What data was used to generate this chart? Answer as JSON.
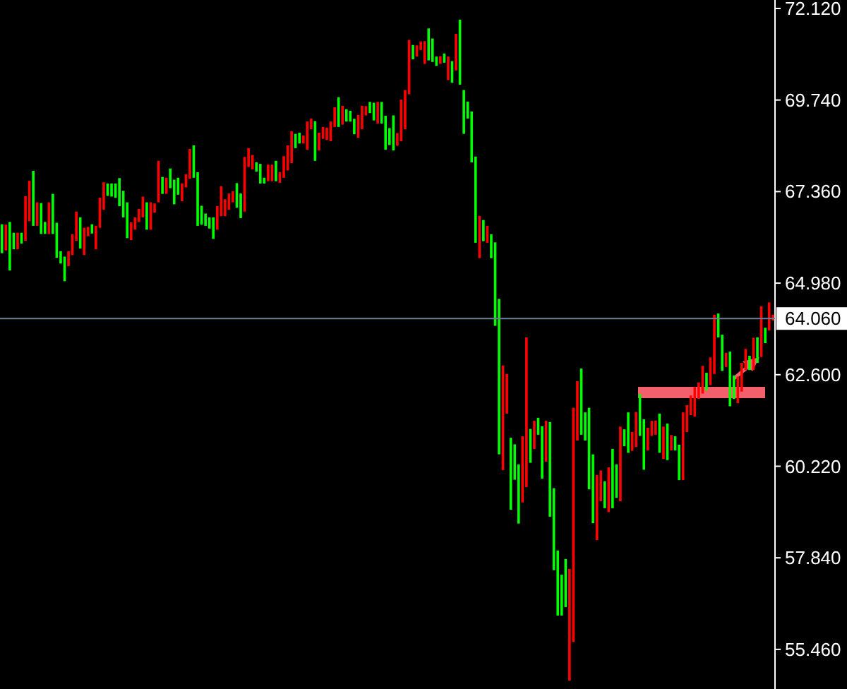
{
  "chart_data": {
    "type": "bar",
    "tick_labels": "y",
    "categories": [
      null,
      null,
      null,
      null,
      null,
      null,
      null,
      null,
      null,
      null,
      null,
      null,
      null,
      null,
      null,
      null,
      null,
      null,
      null,
      null,
      null,
      null,
      null,
      null,
      null,
      null,
      null,
      null,
      null,
      null,
      null,
      null,
      null,
      null,
      null,
      null,
      null,
      null,
      null,
      null,
      null,
      null,
      null,
      null,
      null,
      null,
      null,
      null,
      null,
      null,
      null,
      null,
      null,
      null,
      null,
      null,
      null,
      null,
      null,
      null,
      null,
      null,
      null,
      null,
      null,
      null,
      null,
      null,
      null,
      null,
      null,
      null,
      null,
      null,
      null,
      null,
      null,
      null,
      null,
      null,
      null,
      null,
      null,
      null,
      null,
      null,
      null,
      null,
      null,
      null,
      null,
      null,
      null,
      null,
      null,
      null,
      null,
      null,
      null,
      null,
      null,
      null,
      null,
      null,
      null,
      null,
      null,
      null,
      null,
      null,
      null,
      null,
      null,
      null,
      null,
      null,
      null,
      null,
      null,
      null,
      null,
      null,
      null,
      null,
      null,
      null,
      null,
      null,
      null,
      null,
      null,
      null,
      null,
      null,
      null,
      null,
      null,
      null,
      null,
      null,
      null,
      null,
      null,
      null,
      null,
      null,
      null,
      null,
      null,
      null,
      null,
      null,
      null,
      null,
      null,
      null,
      null,
      null,
      null,
      null,
      null,
      null,
      null,
      null,
      null,
      null,
      null,
      null,
      null,
      null,
      null,
      null,
      null,
      null,
      null,
      null,
      null,
      null,
      null,
      null,
      null,
      null,
      null,
      null,
      null,
      null,
      null,
      null,
      null,
      null,
      null,
      null,
      null,
      null,
      null,
      null,
      null,
      null
    ],
    "base": [
      65.76,
      65.83,
      65.31,
      65.86,
      65.86,
      66.01,
      66.08,
      66.59,
      66.47,
      66.47,
      66.26,
      66.26,
      66.26,
      66.26,
      65.64,
      65.49,
      65.03,
      65.42,
      65.71,
      66.08,
      65.88,
      65.71,
      66.2,
      66.27,
      65.86,
      66.42,
      66.89,
      67.25,
      67.23,
      67.2,
      66.98,
      66.69,
      66.15,
      66.1,
      66.37,
      66.57,
      66.69,
      66.37,
      66.37,
      66.81,
      67.08,
      67.3,
      67.3,
      67.45,
      67.03,
      67.28,
      67.11,
      67.47,
      67.69,
      67.72,
      66.47,
      66.5,
      66.47,
      66.4,
      66.13,
      66.37,
      66.72,
      66.72,
      66.89,
      67.08,
      66.94,
      66.67,
      66.84,
      68.0,
      67.94,
      67.88,
      67.57,
      67.57,
      67.63,
      67.63,
      67.63,
      67.59,
      67.72,
      67.91,
      68.1,
      68.49,
      68.61,
      68.61,
      68.45,
      68.98,
      68.16,
      68.43,
      68.73,
      68.7,
      68.67,
      69.04,
      69.04,
      69.1,
      69.18,
      69.18,
      68.85,
      68.76,
      68.98,
      69.34,
      69.4,
      69.21,
      69.13,
      69.13,
      68.45,
      68.57,
      68.43,
      68.55,
      68.67,
      68.98,
      69.89,
      70.8,
      70.87,
      71.04,
      70.68,
      70.77,
      70.73,
      70.63,
      70.68,
      70.71,
      70.26,
      70.19,
      70.51,
      70.14,
      68.86,
      69.26,
      68.12,
      66.03,
      65.63,
      66.07,
      66.03,
      65.63,
      63.87,
      60.53,
      60.12,
      61.59,
      59.09,
      59.87,
      58.73,
      59.28,
      59.68,
      60.31,
      60.67,
      61.04,
      59.9,
      60.34,
      58.91,
      57.52,
      56.34,
      56.34,
      56.56,
      54.65,
      55.65,
      60.89,
      61.04,
      60.89,
      59.62,
      58.74,
      58.3,
      59.31,
      59.13,
      59.03,
      59.13,
      59.4,
      59.31,
      60.74,
      60.57,
      60.62,
      60.72,
      61.01,
      60.13,
      60.63,
      61.01,
      61.04,
      60.57,
      60.41,
      60.38,
      60.63,
      60.63,
      59.86,
      59.86,
      61.11,
      61.55,
      61.51,
      61.97,
      62.11,
      62.19,
      62.33,
      62.62,
      63.57,
      62.7,
      62.8,
      61.78,
      61.97,
      61.86,
      62.16,
      62.72,
      62.72,
      62.72,
      62.91,
      63.06,
      63.42,
      63.75,
      64.01
    ],
    "values": [
      0.75,
      0.67,
      1.26,
      0.43,
      0.43,
      0.28,
      1.16,
      1.05,
      1.43,
      0.61,
      0.8,
      0.31,
      0.82,
      1.04,
      0.91,
      0.32,
      0.64,
      0.39,
      0.54,
      0.76,
      0.81,
      0.71,
      0.24,
      0.24,
      0.61,
      0.78,
      0.71,
      0.32,
      0.34,
      0.37,
      0.73,
      0.69,
      0.93,
      0.46,
      0.32,
      0.34,
      0.54,
      0.71,
      0.71,
      0.24,
      1.08,
      0.44,
      0.42,
      0.51,
      0.64,
      0.44,
      0.46,
      0.34,
      0.78,
      0.84,
      1.39,
      0.49,
      0.32,
      0.29,
      0.56,
      0.61,
      0.78,
      0.44,
      0.42,
      0.29,
      0.64,
      0.64,
      1.42,
      0.49,
      0.37,
      0.24,
      0.51,
      0.15,
      0.43,
      0.43,
      0.53,
      0.27,
      0.56,
      0.65,
      0.83,
      0.37,
      0.28,
      0.21,
      0.73,
      0.28,
      1.03,
      0.46,
      0.31,
      0.32,
      0.51,
      0.51,
      0.77,
      0.49,
      0.32,
      0.28,
      0.4,
      0.59,
      0.61,
      0.24,
      0.29,
      0.46,
      0.56,
      0.56,
      0.88,
      0.44,
      0.91,
      0.33,
      1.08,
      1.02,
      1.41,
      0.37,
      0.29,
      0.22,
      0.59,
      0.83,
      0.61,
      0.24,
      0.2,
      0.24,
      0.61,
      0.56,
      0.95,
      1.69,
      1.14,
      0.44,
      1.32,
      2.24,
      1.1,
      0.55,
      0.44,
      0.62,
      2.17,
      4.04,
      2.72,
      1.03,
      1.87,
      0.92,
      1.54,
      1.72,
      3.89,
      0.88,
      0.73,
      0.44,
      1.36,
      1.06,
      2.46,
      2.13,
      1.69,
      1.06,
      1.25,
      2.9,
      6.09,
      1.54,
      1.72,
      0.73,
      2.12,
      1.79,
      1.69,
      0.8,
      0.7,
      1.16,
      1.54,
      0.87,
      1.94,
      0.44,
      1.05,
      0.49,
      0.91,
      1.09,
      1.31,
      0.59,
      0.39,
      0.37,
      1.02,
      0.84,
      0.95,
      0.4,
      0.37,
      0.92,
      1.76,
      0.7,
      0.51,
      0.77,
      0.43,
      0.72,
      0.46,
      0.72,
      1.54,
      0.62,
      0.94,
      0.37,
      1.42,
      0.61,
      0.69,
      0.75,
      0.55,
      0.37,
      0.84,
      0.66,
      1.32,
      0.4,
      0.73,
      0.15
    ],
    "colors": [
      "#00ff00",
      "#ff0000",
      "#00ff00",
      "#00ff00",
      "#ff0000",
      "#00ff00",
      "#ff0000",
      "#ff0000",
      "#00ff00",
      "#ff0000",
      "#00ff00",
      "#00ff00",
      "#ff0000",
      "#00ff00",
      "#00ff00",
      "#00ff00",
      "#00ff00",
      "#ff0000",
      "#ff0000",
      "#ff0000",
      "#00ff00",
      "#ff0000",
      "#ff0000",
      "#00ff00",
      "#ff0000",
      "#ff0000",
      "#ff0000",
      "#00ff00",
      "#00ff00",
      "#00ff00",
      "#00ff00",
      "#00ff00",
      "#00ff00",
      "#ff0000",
      "#ff0000",
      "#ff0000",
      "#ff0000",
      "#00ff00",
      "#ff0000",
      "#ff0000",
      "#ff0000",
      "#00ff00",
      "#ff0000",
      "#00ff00",
      "#00ff00",
      "#00ff00",
      "#ff0000",
      "#ff0000",
      "#ff0000",
      "#00ff00",
      "#00ff00",
      "#00ff00",
      "#00ff00",
      "#00ff00",
      "#00ff00",
      "#ff0000",
      "#ff0000",
      "#ff0000",
      "#ff0000",
      "#ff0000",
      "#00ff00",
      "#00ff00",
      "#ff0000",
      "#ff0000",
      "#ff0000",
      "#00ff00",
      "#00ff00",
      "#00ff00",
      "#ff0000",
      "#ff0000",
      "#00ff00",
      "#ff0000",
      "#ff0000",
      "#ff0000",
      "#ff0000",
      "#00ff00",
      "#00ff00",
      "#ff0000",
      "#ff0000",
      "#ff0000",
      "#00ff00",
      "#ff0000",
      "#ff0000",
      "#ff0000",
      "#ff0000",
      "#ff0000",
      "#00ff00",
      "#ff0000",
      "#00ff00",
      "#00ff00",
      "#00ff00",
      "#ff0000",
      "#ff0000",
      "#ff0000",
      "#00ff00",
      "#00ff00",
      "#ff0000",
      "#00ff00",
      "#00ff00",
      "#00ff00",
      "#00ff00",
      "#ff0000",
      "#ff0000",
      "#ff0000",
      "#ff0000",
      "#00ff00",
      "#ff0000",
      "#ff0000",
      "#ff0000",
      "#00ff00",
      "#00ff00",
      "#00ff00",
      "#ff0000",
      "#00ff00",
      "#ff0000",
      "#00ff00",
      "#ff0000",
      "#00ff00",
      "#00ff00",
      "#00ff00",
      "#00ff00",
      "#00ff00",
      "#ff0000",
      "#00ff00",
      "#ff0000",
      "#00ff00",
      "#00ff00",
      "#00ff00",
      "#ff0000",
      "#ff0000",
      "#00ff00",
      "#00ff00",
      "#00ff00",
      "#ff0000",
      "#ff0000",
      "#00ff00",
      "#ff0000",
      "#00ff00",
      "#00ff00",
      "#ff0000",
      "#00ff00",
      "#00ff00",
      "#00ff00",
      "#00ff00",
      "#00ff00",
      "#ff0000",
      "#ff0000",
      "#ff0000",
      "#00ff00",
      "#00ff00",
      "#00ff00",
      "#00ff00",
      "#ff0000",
      "#ff0000",
      "#00ff00",
      "#ff0000",
      "#00ff00",
      "#00ff00",
      "#ff0000",
      "#00ff00",
      "#00ff00",
      "#ff0000",
      "#ff0000",
      "#00ff00",
      "#00ff00",
      "#ff0000",
      "#ff0000",
      "#ff0000",
      "#00ff00",
      "#ff0000",
      "#00ff00",
      "#ff0000",
      "#00ff00",
      "#00ff00",
      "#ff0000",
      "#ff0000",
      "#ff0000",
      "#ff0000",
      "#ff0000",
      "#ff0000",
      "#00ff00",
      "#ff0000",
      "#ff0000",
      "#00ff00",
      "#00ff00",
      "#ff0000",
      "#00ff00",
      "#00ff00",
      "#ff0000",
      "#ff0000",
      "#ff0000",
      "#00ff00",
      "#ff0000",
      "#00ff00",
      "#ff0000",
      "#00ff00",
      "#ff0000",
      "#ff0000"
    ],
    "ylim": [
      54.43,
      72.34
    ],
    "yticks": [
      {
        "value": 72.12,
        "label": "72.120"
      },
      {
        "value": 69.74,
        "label": "69.740"
      },
      {
        "value": 67.36,
        "label": "67.360"
      },
      {
        "value": 64.98,
        "label": "64.980"
      },
      {
        "value": 62.6,
        "label": "62.600"
      },
      {
        "value": 60.22,
        "label": "60.220"
      },
      {
        "value": 57.84,
        "label": "57.840"
      },
      {
        "value": 55.46,
        "label": "55.460"
      }
    ],
    "ref_lines": [
      {
        "axis": "y",
        "value": 64.06,
        "label": "64.060",
        "color": "#6e7f99"
      }
    ]
  }
}
